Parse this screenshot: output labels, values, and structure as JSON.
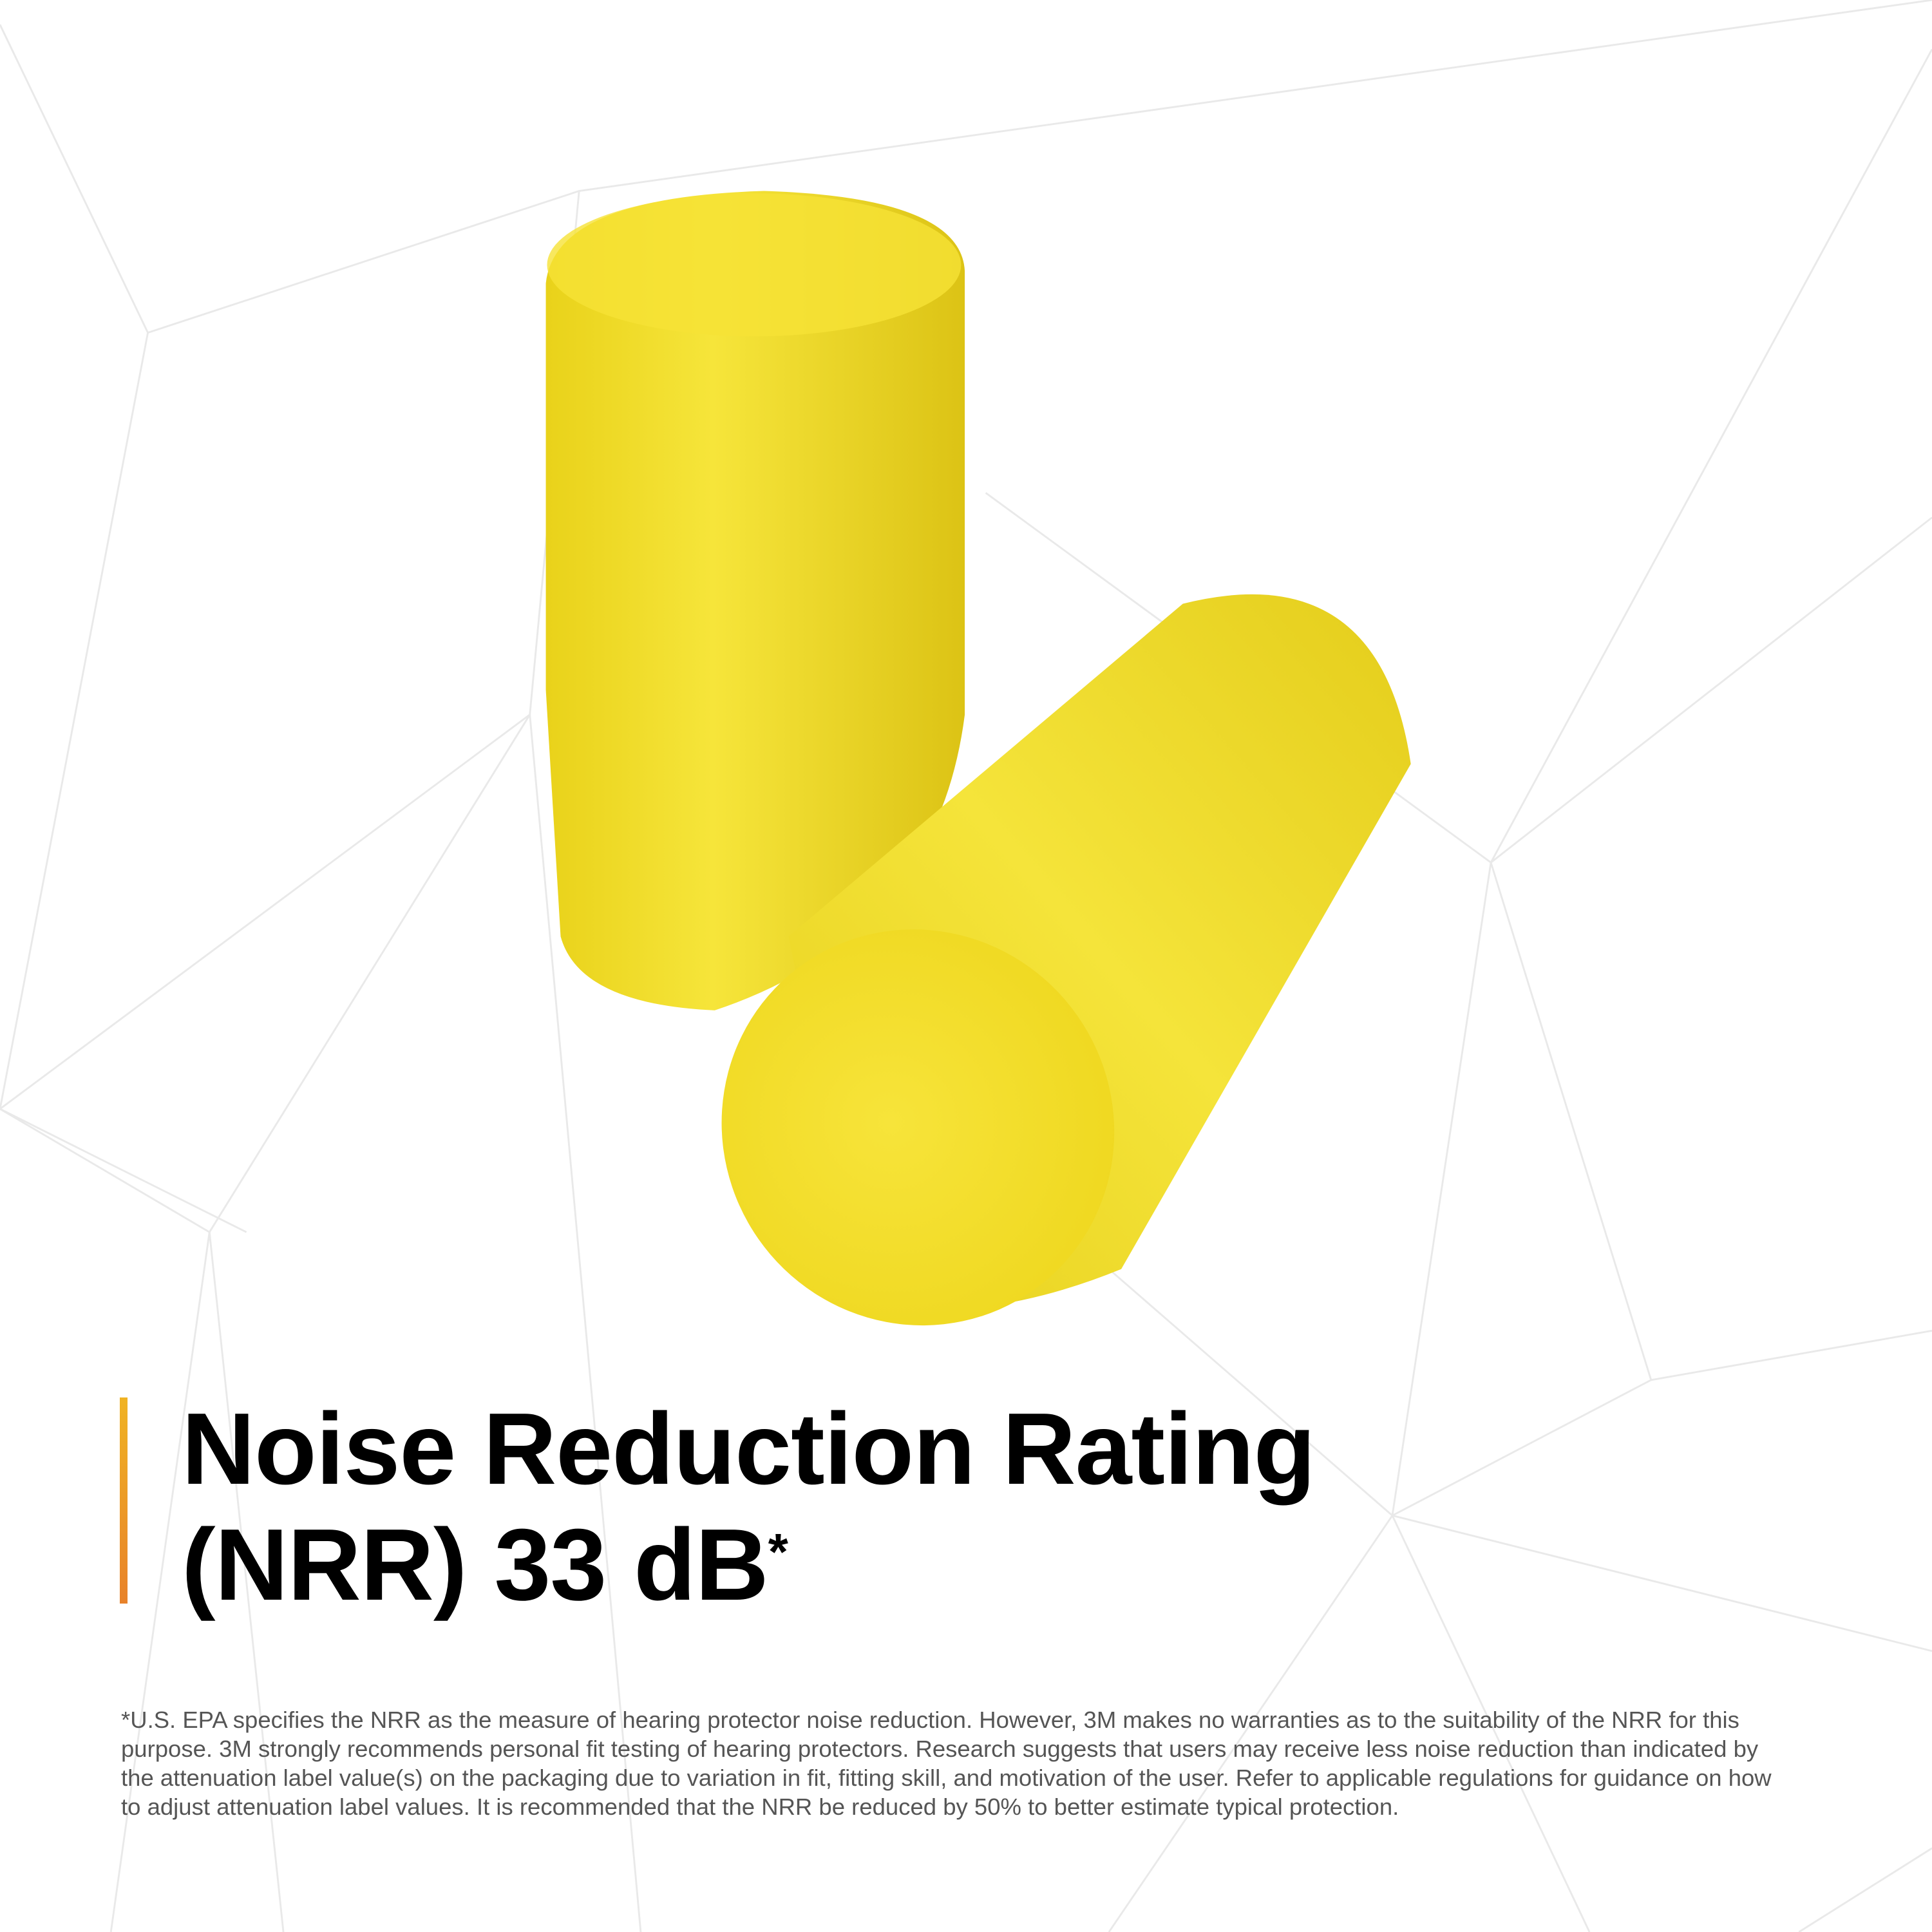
{
  "product": {
    "image_subject": "yellow foam earplugs",
    "colors": {
      "accent_bar_top": "#f0b323",
      "accent_bar_bottom": "#e8822a",
      "earplug": "#f2e12a",
      "title": "#000000",
      "footnote": "#555555"
    }
  },
  "headline": {
    "line1": "Noise Reduction Rating",
    "line2": "(NRR) 33 dB",
    "asterisk": "*"
  },
  "footnote": {
    "text": "*U.S. EPA specifies the NRR as the measure of hearing protector noise reduction. However, 3M makes no warranties as to the suitability of the NRR for this purpose. 3M strongly recommends personal fit testing of hearing protectors. Research suggests that users may receive less noise reduction than indicated by the attenuation label value(s) on the packaging due to variation in fit, fitting skill, and motivation of the user. Refer to applicable regulations for guidance on how to adjust attenuation label values. It is recommended that the NRR be reduced by 50% to better estimate typical protection."
  }
}
